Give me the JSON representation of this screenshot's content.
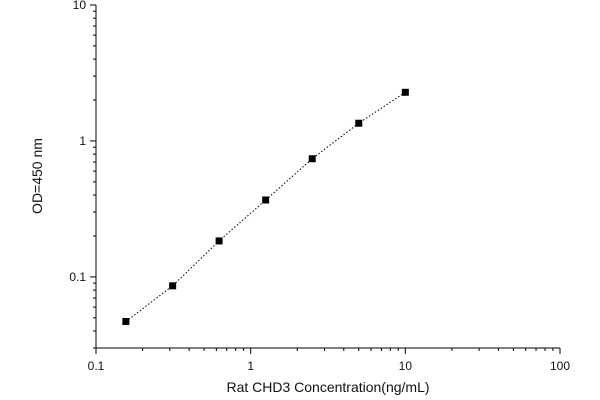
{
  "chart_data": {
    "type": "scatter",
    "title": "",
    "xlabel": "Rat CHD3 Concentration(ng/mL)",
    "ylabel": "OD=450 nm",
    "xscale": "log",
    "yscale": "log",
    "xlim": [
      0.1,
      100
    ],
    "ylim": [
      0.03,
      10
    ],
    "grid": false,
    "legend": "none",
    "x_ticks": [
      0.1,
      1,
      10,
      100
    ],
    "x_tick_labels": [
      "0.1",
      "1",
      "10",
      "100"
    ],
    "y_ticks": [
      0.1,
      1,
      10
    ],
    "y_tick_labels": [
      "0.1",
      "1",
      "10"
    ],
    "series": [
      {
        "x": [
          0.156,
          0.313,
          0.625,
          1.25,
          2.5,
          5,
          10
        ],
        "y": [
          0.047,
          0.086,
          0.184,
          0.368,
          0.74,
          1.35,
          2.28
        ],
        "marker": "square",
        "fit_line": "dotted",
        "color": "#000000"
      }
    ]
  }
}
